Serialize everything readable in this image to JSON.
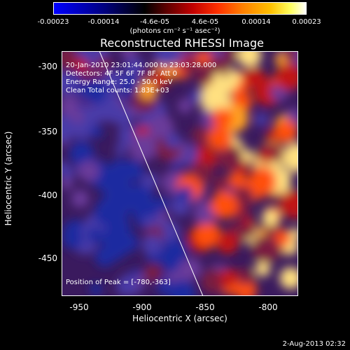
{
  "colorbar": {
    "ticks": [
      "-0.00023",
      "-0.00014",
      "-4.6e-05",
      "4.6e-05",
      "0.00014",
      "0.00023"
    ],
    "units": "(photons cm⁻² s⁻¹ asec⁻²)"
  },
  "plot": {
    "title": "Reconstructed RHESSI Image",
    "xlabel": "Heliocentric X (arcsec)",
    "ylabel": "Heliocentric Y (arcsec)",
    "xticks": [
      "-950",
      "-900",
      "-850",
      "-800"
    ],
    "yticks": [
      "-300",
      "-350",
      "-400",
      "-450"
    ]
  },
  "annotations": {
    "time_range": "20-Jan-2010 23:01:44.000 to 23:03:28.000",
    "detectors": "Detectors: 4F 5F 6F 7F 8F, Att 0",
    "energy": "Energy Range: 25.0 - 50.0 keV",
    "clean": "Clean    Total counts: 1.83E+03",
    "peak": "Position of Peak = [-780,-363]"
  },
  "timestamp": "2-Aug-2013 02:32"
}
